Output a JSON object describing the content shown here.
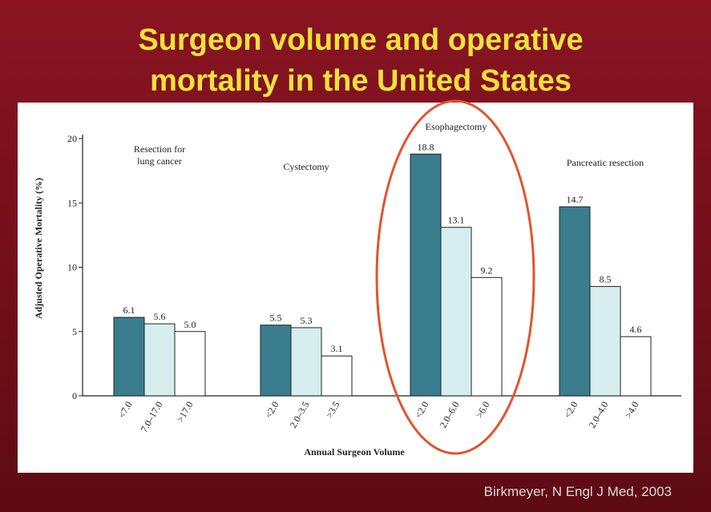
{
  "title": [
    "Surgeon volume and operative",
    "mortality in the United States"
  ],
  "source": "Birkmeyer, N Engl J Med, 2003",
  "chart_data": {
    "type": "grouped_bar",
    "y_label": "Adjusted Operative Mortality (%)",
    "x_label": "Annual Surgeon Volume",
    "ylim": [
      0,
      20
    ],
    "yticks": [
      0,
      5,
      10,
      15,
      20
    ],
    "colors": [
      "#3a7d8f",
      "#d6eeee",
      "#ffffff"
    ],
    "groups": [
      {
        "name": [
          "Resection for",
          "lung cancer"
        ],
        "categories": [
          "<7.0",
          "7.0–17.0",
          ">17.0"
        ],
        "values": [
          6.1,
          5.6,
          5.0
        ],
        "value_labels": [
          "6.1",
          "5.6",
          "5.0"
        ]
      },
      {
        "name": [
          "Cystectomy"
        ],
        "categories": [
          "<2.0",
          "2.0–3.5",
          ">3.5"
        ],
        "values": [
          5.5,
          5.3,
          3.1
        ],
        "value_labels": [
          "5.5",
          "5.3",
          "3.1"
        ]
      },
      {
        "name": [
          "Esophagectomy"
        ],
        "categories": [
          "<2.0",
          "2.0–6.0",
          ">6.0"
        ],
        "values": [
          18.8,
          13.1,
          9.2
        ],
        "value_labels": [
          "18.8",
          "13.1",
          "9.2"
        ]
      },
      {
        "name": [
          "Pancreatic resection"
        ],
        "categories": [
          "<2.0",
          "2.0–4.0",
          ">4.0"
        ],
        "values": [
          14.7,
          8.5,
          4.6
        ],
        "value_labels": [
          "14.7",
          "8.5",
          "4.6"
        ]
      }
    ]
  }
}
